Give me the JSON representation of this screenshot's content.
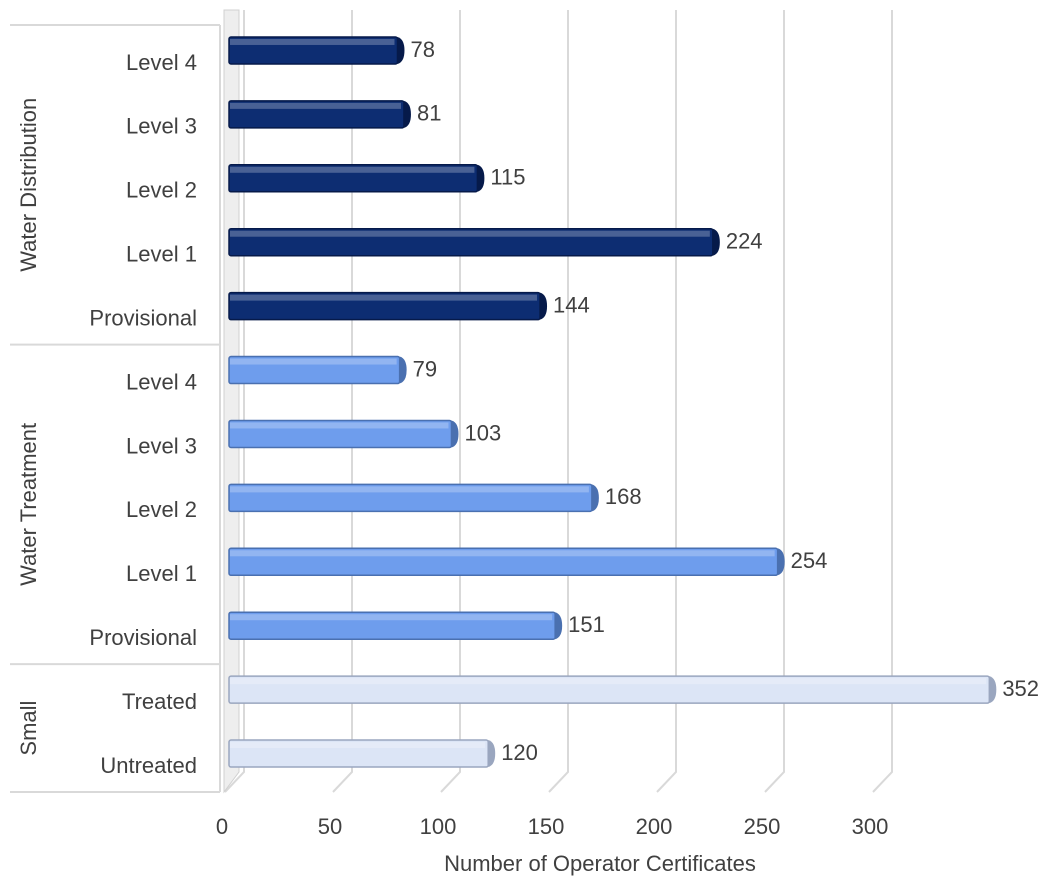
{
  "chart_data": {
    "type": "bar",
    "orientation": "horizontal",
    "x_label": "Number of Operator Certificates",
    "groups": [
      {
        "name": "Water Distribution",
        "color": "#0d2d72",
        "categories": [
          "Level 4",
          "Level 3",
          "Level 2",
          "Level 1",
          "Provisional"
        ],
        "values": [
          78,
          81,
          115,
          224,
          144
        ]
      },
      {
        "name": "Water Treatment",
        "color": "#6e9ded",
        "categories": [
          "Level 4",
          "Level 3",
          "Level 2",
          "Level 1",
          "Provisional"
        ],
        "values": [
          79,
          103,
          168,
          254,
          151
        ]
      },
      {
        "name": "Small",
        "color": "#dce5f6",
        "categories": [
          "Treated",
          "Untreated"
        ],
        "values": [
          352,
          120
        ]
      }
    ],
    "xlim": [
      0,
      350
    ],
    "xticks": [
      0,
      50,
      100,
      150,
      200,
      250,
      300
    ],
    "grid": true
  }
}
